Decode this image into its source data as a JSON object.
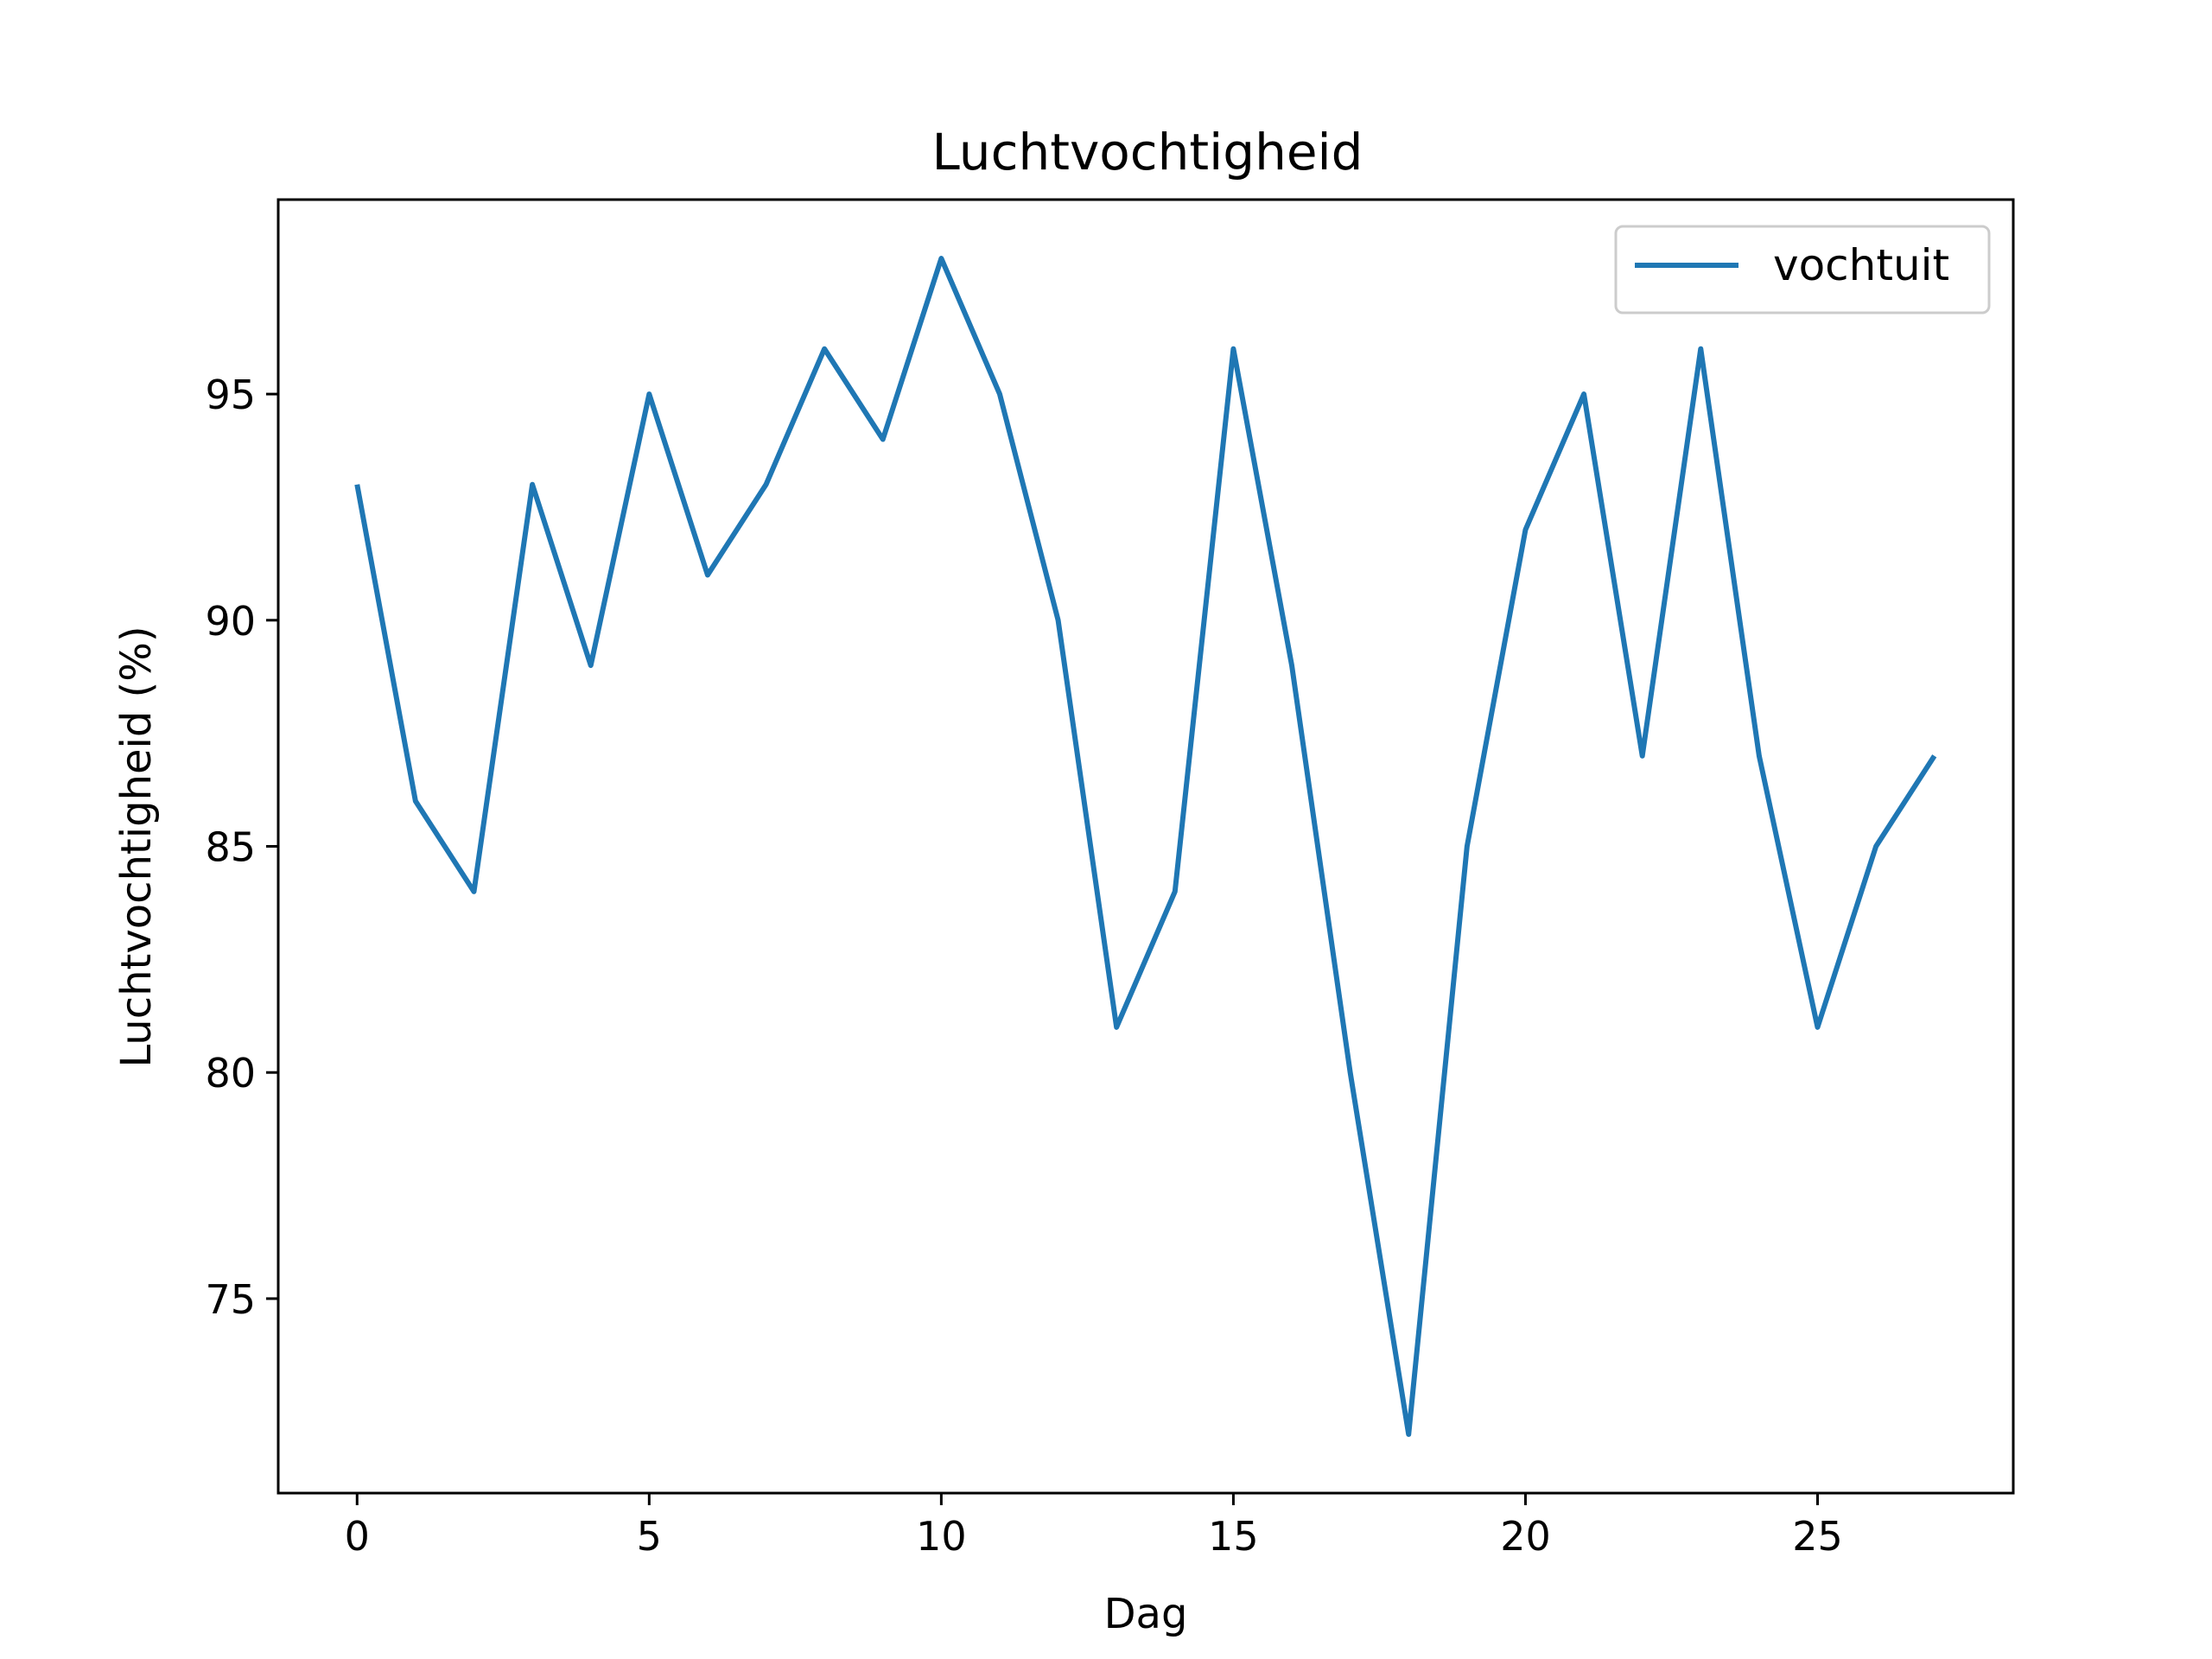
{
  "chart_data": {
    "type": "line",
    "title": "Luchtvochtigheid",
    "xlabel": "Dag",
    "ylabel": "Luchtvochtigheid (%)",
    "xlim": [
      -1.35,
      28.35
    ],
    "ylim": [
      70.7,
      99.3
    ],
    "xticks": [
      0,
      5,
      10,
      15,
      20,
      25
    ],
    "yticks": [
      75,
      80,
      85,
      90,
      95
    ],
    "grid": false,
    "legend_position": "top-right",
    "series": [
      {
        "name": "vochtuit",
        "color": "#1f77b4",
        "x": [
          0,
          1,
          2,
          3,
          4,
          5,
          6,
          7,
          8,
          9,
          10,
          11,
          12,
          13,
          14,
          15,
          16,
          17,
          18,
          19,
          20,
          21,
          22,
          23,
          24,
          25,
          26,
          27
        ],
        "values": [
          93,
          86,
          84,
          93,
          89,
          95,
          91,
          93,
          96,
          94,
          98,
          95,
          90,
          81,
          84,
          96,
          89,
          80,
          72,
          85,
          92,
          95,
          87,
          96,
          87,
          81,
          85,
          87
        ]
      }
    ]
  }
}
